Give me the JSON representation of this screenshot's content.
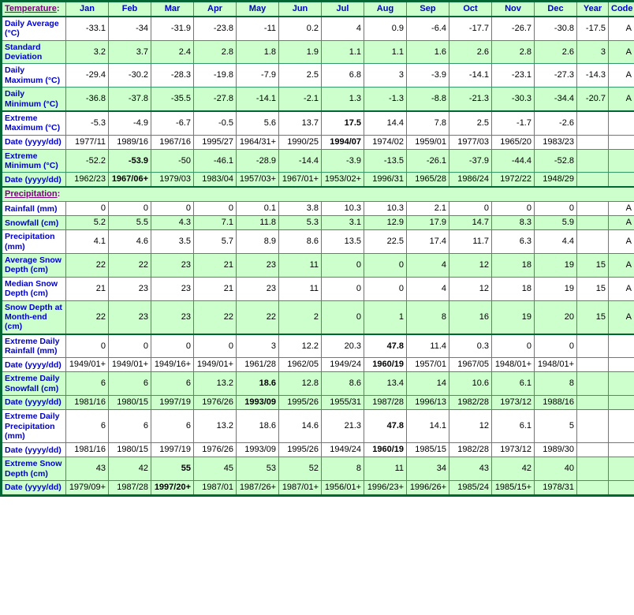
{
  "header": {
    "section_label": "Temperature",
    "section_suffix": ":",
    "months": [
      "Jan",
      "Feb",
      "Mar",
      "Apr",
      "May",
      "Jun",
      "Jul",
      "Aug",
      "Sep",
      "Oct",
      "Nov",
      "Dec"
    ],
    "year_label": "Year",
    "code_label": "Code"
  },
  "colors": {
    "row_green": "#ccffcc",
    "border_thin": "#339966",
    "border_thick": "#006633",
    "label_blue": "#0000cc",
    "section_purple": "#800080"
  },
  "rows": [
    {
      "type": "data",
      "label": "Daily Average (°C)",
      "bg": "white",
      "thick_top": false,
      "bold_month": -1,
      "months": [
        "-33.1",
        "-34",
        "-31.9",
        "-23.8",
        "-11",
        "0.2",
        "4",
        "0.9",
        "-6.4",
        "-17.7",
        "-26.7",
        "-30.8"
      ],
      "year": "-17.5",
      "code": "A"
    },
    {
      "type": "data",
      "label": "Standard Deviation",
      "bg": "green",
      "thick_top": false,
      "bold_month": -1,
      "months": [
        "3.2",
        "3.7",
        "2.4",
        "2.8",
        "1.8",
        "1.9",
        "1.1",
        "1.1",
        "1.6",
        "2.6",
        "2.8",
        "2.6"
      ],
      "year": "3",
      "code": "A"
    },
    {
      "type": "data",
      "label": "Daily Maximum (°C)",
      "bg": "white",
      "thick_top": false,
      "bold_month": -1,
      "months": [
        "-29.4",
        "-30.2",
        "-28.3",
        "-19.8",
        "-7.9",
        "2.5",
        "6.8",
        "3",
        "-3.9",
        "-14.1",
        "-23.1",
        "-27.3"
      ],
      "year": "-14.3",
      "code": "A"
    },
    {
      "type": "data",
      "label": "Daily Minimum (°C)",
      "bg": "green",
      "thick_top": false,
      "bold_month": -1,
      "months": [
        "-36.8",
        "-37.8",
        "-35.5",
        "-27.8",
        "-14.1",
        "-2.1",
        "1.3",
        "-1.3",
        "-8.8",
        "-21.3",
        "-30.3",
        "-34.4"
      ],
      "year": "-20.7",
      "code": "A"
    },
    {
      "type": "data",
      "label": "Extreme Maximum (°C)",
      "bg": "white",
      "thick_top": true,
      "bold_month": 6,
      "months": [
        "-5.3",
        "-4.9",
        "-6.7",
        "-0.5",
        "5.6",
        "13.7",
        "17.5",
        "14.4",
        "7.8",
        "2.5",
        "-1.7",
        "-2.6"
      ],
      "year": "",
      "code": ""
    },
    {
      "type": "data",
      "label": "Date (yyyy/dd)",
      "bg": "white",
      "thick_top": false,
      "bold_month": 6,
      "months": [
        "1977/11",
        "1989/16",
        "1967/16",
        "1995/27",
        "1964/31+",
        "1990/25",
        "1994/07",
        "1974/02",
        "1959/01",
        "1977/03",
        "1965/20",
        "1983/23"
      ],
      "year": "",
      "code": ""
    },
    {
      "type": "data",
      "label": "Extreme Minimum (°C)",
      "bg": "green",
      "thick_top": false,
      "bold_month": 1,
      "months": [
        "-52.2",
        "-53.9",
        "-50",
        "-46.1",
        "-28.9",
        "-14.4",
        "-3.9",
        "-13.5",
        "-26.1",
        "-37.9",
        "-44.4",
        "-52.8"
      ],
      "year": "",
      "code": ""
    },
    {
      "type": "data",
      "label": "Date (yyyy/dd)",
      "bg": "green",
      "thick_top": false,
      "bold_month": 1,
      "months": [
        "1962/23",
        "1967/06+",
        "1979/03",
        "1983/04",
        "1957/03+",
        "1967/01+",
        "1953/02+",
        "1996/31",
        "1965/28",
        "1986/24",
        "1972/22",
        "1948/29"
      ],
      "year": "",
      "code": ""
    },
    {
      "type": "section",
      "label": "Precipitation",
      "suffix": ":",
      "bg": "green",
      "thick_top": true
    },
    {
      "type": "data",
      "label": "Rainfall (mm)",
      "bg": "white",
      "thick_top": false,
      "bold_month": -1,
      "months": [
        "0",
        "0",
        "0",
        "0",
        "0.1",
        "3.8",
        "10.3",
        "10.3",
        "2.1",
        "0",
        "0",
        "0"
      ],
      "year": "",
      "code": "A"
    },
    {
      "type": "data",
      "label": "Snowfall (cm)",
      "bg": "green",
      "thick_top": false,
      "bold_month": -1,
      "months": [
        "5.2",
        "5.5",
        "4.3",
        "7.1",
        "11.8",
        "5.3",
        "3.1",
        "12.9",
        "17.9",
        "14.7",
        "8.3",
        "5.9"
      ],
      "year": "",
      "code": "A"
    },
    {
      "type": "data",
      "label": "Precipitation (mm)",
      "bg": "white",
      "thick_top": false,
      "bold_month": -1,
      "months": [
        "4.1",
        "4.6",
        "3.5",
        "5.7",
        "8.9",
        "8.6",
        "13.5",
        "22.5",
        "17.4",
        "11.7",
        "6.3",
        "4.4"
      ],
      "year": "",
      "code": "A"
    },
    {
      "type": "data",
      "label": "Average Snow Depth (cm)",
      "bg": "green",
      "thick_top": false,
      "bold_month": -1,
      "months": [
        "22",
        "22",
        "23",
        "21",
        "23",
        "11",
        "0",
        "0",
        "4",
        "12",
        "18",
        "19"
      ],
      "year": "15",
      "code": "A"
    },
    {
      "type": "data",
      "label": "Median Snow Depth (cm)",
      "bg": "white",
      "thick_top": false,
      "bold_month": -1,
      "months": [
        "21",
        "23",
        "23",
        "21",
        "23",
        "11",
        "0",
        "0",
        "4",
        "12",
        "18",
        "19"
      ],
      "year": "15",
      "code": "A"
    },
    {
      "type": "data",
      "label": "Snow Depth at Month-end (cm)",
      "bg": "green",
      "thick_top": false,
      "bold_month": -1,
      "months": [
        "22",
        "23",
        "23",
        "22",
        "22",
        "2",
        "0",
        "1",
        "8",
        "16",
        "19",
        "20"
      ],
      "year": "15",
      "code": "A"
    },
    {
      "type": "data",
      "label": "Extreme Daily Rainfall (mm)",
      "bg": "white",
      "thick_top": true,
      "bold_month": 7,
      "months": [
        "0",
        "0",
        "0",
        "0",
        "3",
        "12.2",
        "20.3",
        "47.8",
        "11.4",
        "0.3",
        "0",
        "0"
      ],
      "year": "",
      "code": ""
    },
    {
      "type": "data",
      "label": "Date (yyyy/dd)",
      "bg": "white",
      "thick_top": false,
      "bold_month": 7,
      "months": [
        "1949/01+",
        "1949/01+",
        "1949/16+",
        "1949/01+",
        "1961/28",
        "1962/05",
        "1949/24",
        "1960/19",
        "1957/01",
        "1967/05",
        "1948/01+",
        "1948/01+"
      ],
      "year": "",
      "code": ""
    },
    {
      "type": "data",
      "label": "Extreme Daily Snowfall (cm)",
      "bg": "green",
      "thick_top": false,
      "bold_month": 4,
      "months": [
        "6",
        "6",
        "6",
        "13.2",
        "18.6",
        "12.8",
        "8.6",
        "13.4",
        "14",
        "10.6",
        "6.1",
        "8"
      ],
      "year": "",
      "code": ""
    },
    {
      "type": "data",
      "label": "Date (yyyy/dd)",
      "bg": "green",
      "thick_top": false,
      "bold_month": 4,
      "months": [
        "1981/16",
        "1980/15",
        "1997/19",
        "1976/26",
        "1993/09",
        "1995/26",
        "1955/31",
        "1987/28",
        "1996/13",
        "1982/28",
        "1973/12",
        "1988/16"
      ],
      "year": "",
      "code": ""
    },
    {
      "type": "data",
      "label": "Extreme Daily Precipitation (mm)",
      "bg": "white",
      "thick_top": false,
      "bold_month": 7,
      "months": [
        "6",
        "6",
        "6",
        "13.2",
        "18.6",
        "14.6",
        "21.3",
        "47.8",
        "14.1",
        "12",
        "6.1",
        "5"
      ],
      "year": "",
      "code": ""
    },
    {
      "type": "data",
      "label": "Date (yyyy/dd)",
      "bg": "white",
      "thick_top": false,
      "bold_month": 7,
      "months": [
        "1981/16",
        "1980/15",
        "1997/19",
        "1976/26",
        "1993/09",
        "1995/26",
        "1949/24",
        "1960/19",
        "1985/15",
        "1982/28",
        "1973/12",
        "1989/30"
      ],
      "year": "",
      "code": ""
    },
    {
      "type": "data",
      "label": "Extreme Snow Depth (cm)",
      "bg": "green",
      "thick_top": false,
      "bold_month": 2,
      "months": [
        "43",
        "42",
        "55",
        "45",
        "53",
        "52",
        "8",
        "11",
        "34",
        "43",
        "42",
        "40"
      ],
      "year": "",
      "code": ""
    },
    {
      "type": "data",
      "label": "Date (yyyy/dd)",
      "bg": "green",
      "thick_top": false,
      "bold_month": 2,
      "months": [
        "1979/09+",
        "1987/28",
        "1997/20+",
        "1987/01",
        "1987/26+",
        "1987/01+",
        "1956/01+",
        "1996/23+",
        "1996/26+",
        "1985/24",
        "1985/15+",
        "1978/31"
      ],
      "year": "",
      "code": ""
    }
  ]
}
